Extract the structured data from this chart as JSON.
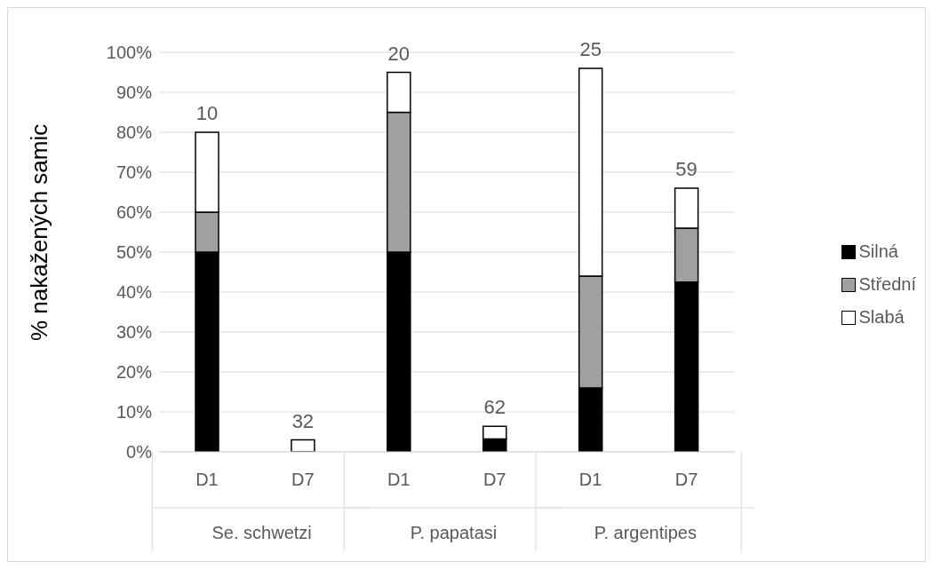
{
  "chart_data": {
    "type": "bar",
    "stacked": true,
    "ylabel": "% nakažených samic",
    "categories": [
      "D1",
      "D7",
      "D1",
      "D7",
      "D1",
      "D7"
    ],
    "annotations": [
      "Se. schwetzi",
      "P. papatasi",
      "P. argentipes",
      "10",
      "32",
      "20",
      "62",
      "25",
      "59"
    ],
    "series": [
      {
        "name": "Silná",
        "color": "#000000",
        "values": [
          50,
          0,
          50,
          3.2,
          16,
          42.5
        ]
      },
      {
        "name": "Střední",
        "color": "#a0a0a0",
        "values": [
          10,
          0,
          35,
          0,
          28,
          13.5
        ]
      },
      {
        "name": "Slabá",
        "color": "#ffffff",
        "values": [
          20,
          3,
          10,
          3.2,
          52,
          10
        ]
      }
    ],
    "ylim": [
      0,
      100
    ],
    "yticks": [
      {
        "value": 0,
        "label": "0%"
      },
      {
        "value": 10,
        "label": "10%"
      },
      {
        "value": 20,
        "label": "20%"
      },
      {
        "value": 30,
        "label": "30%"
      },
      {
        "value": 40,
        "label": "40%"
      },
      {
        "value": 50,
        "label": "50%"
      },
      {
        "value": 60,
        "label": "60%"
      },
      {
        "value": 70,
        "label": "70%"
      },
      {
        "value": 80,
        "label": "80%"
      },
      {
        "value": 90,
        "label": "90%"
      },
      {
        "value": 100,
        "label": "100%"
      }
    ],
    "grid": "y",
    "legend": "right"
  }
}
